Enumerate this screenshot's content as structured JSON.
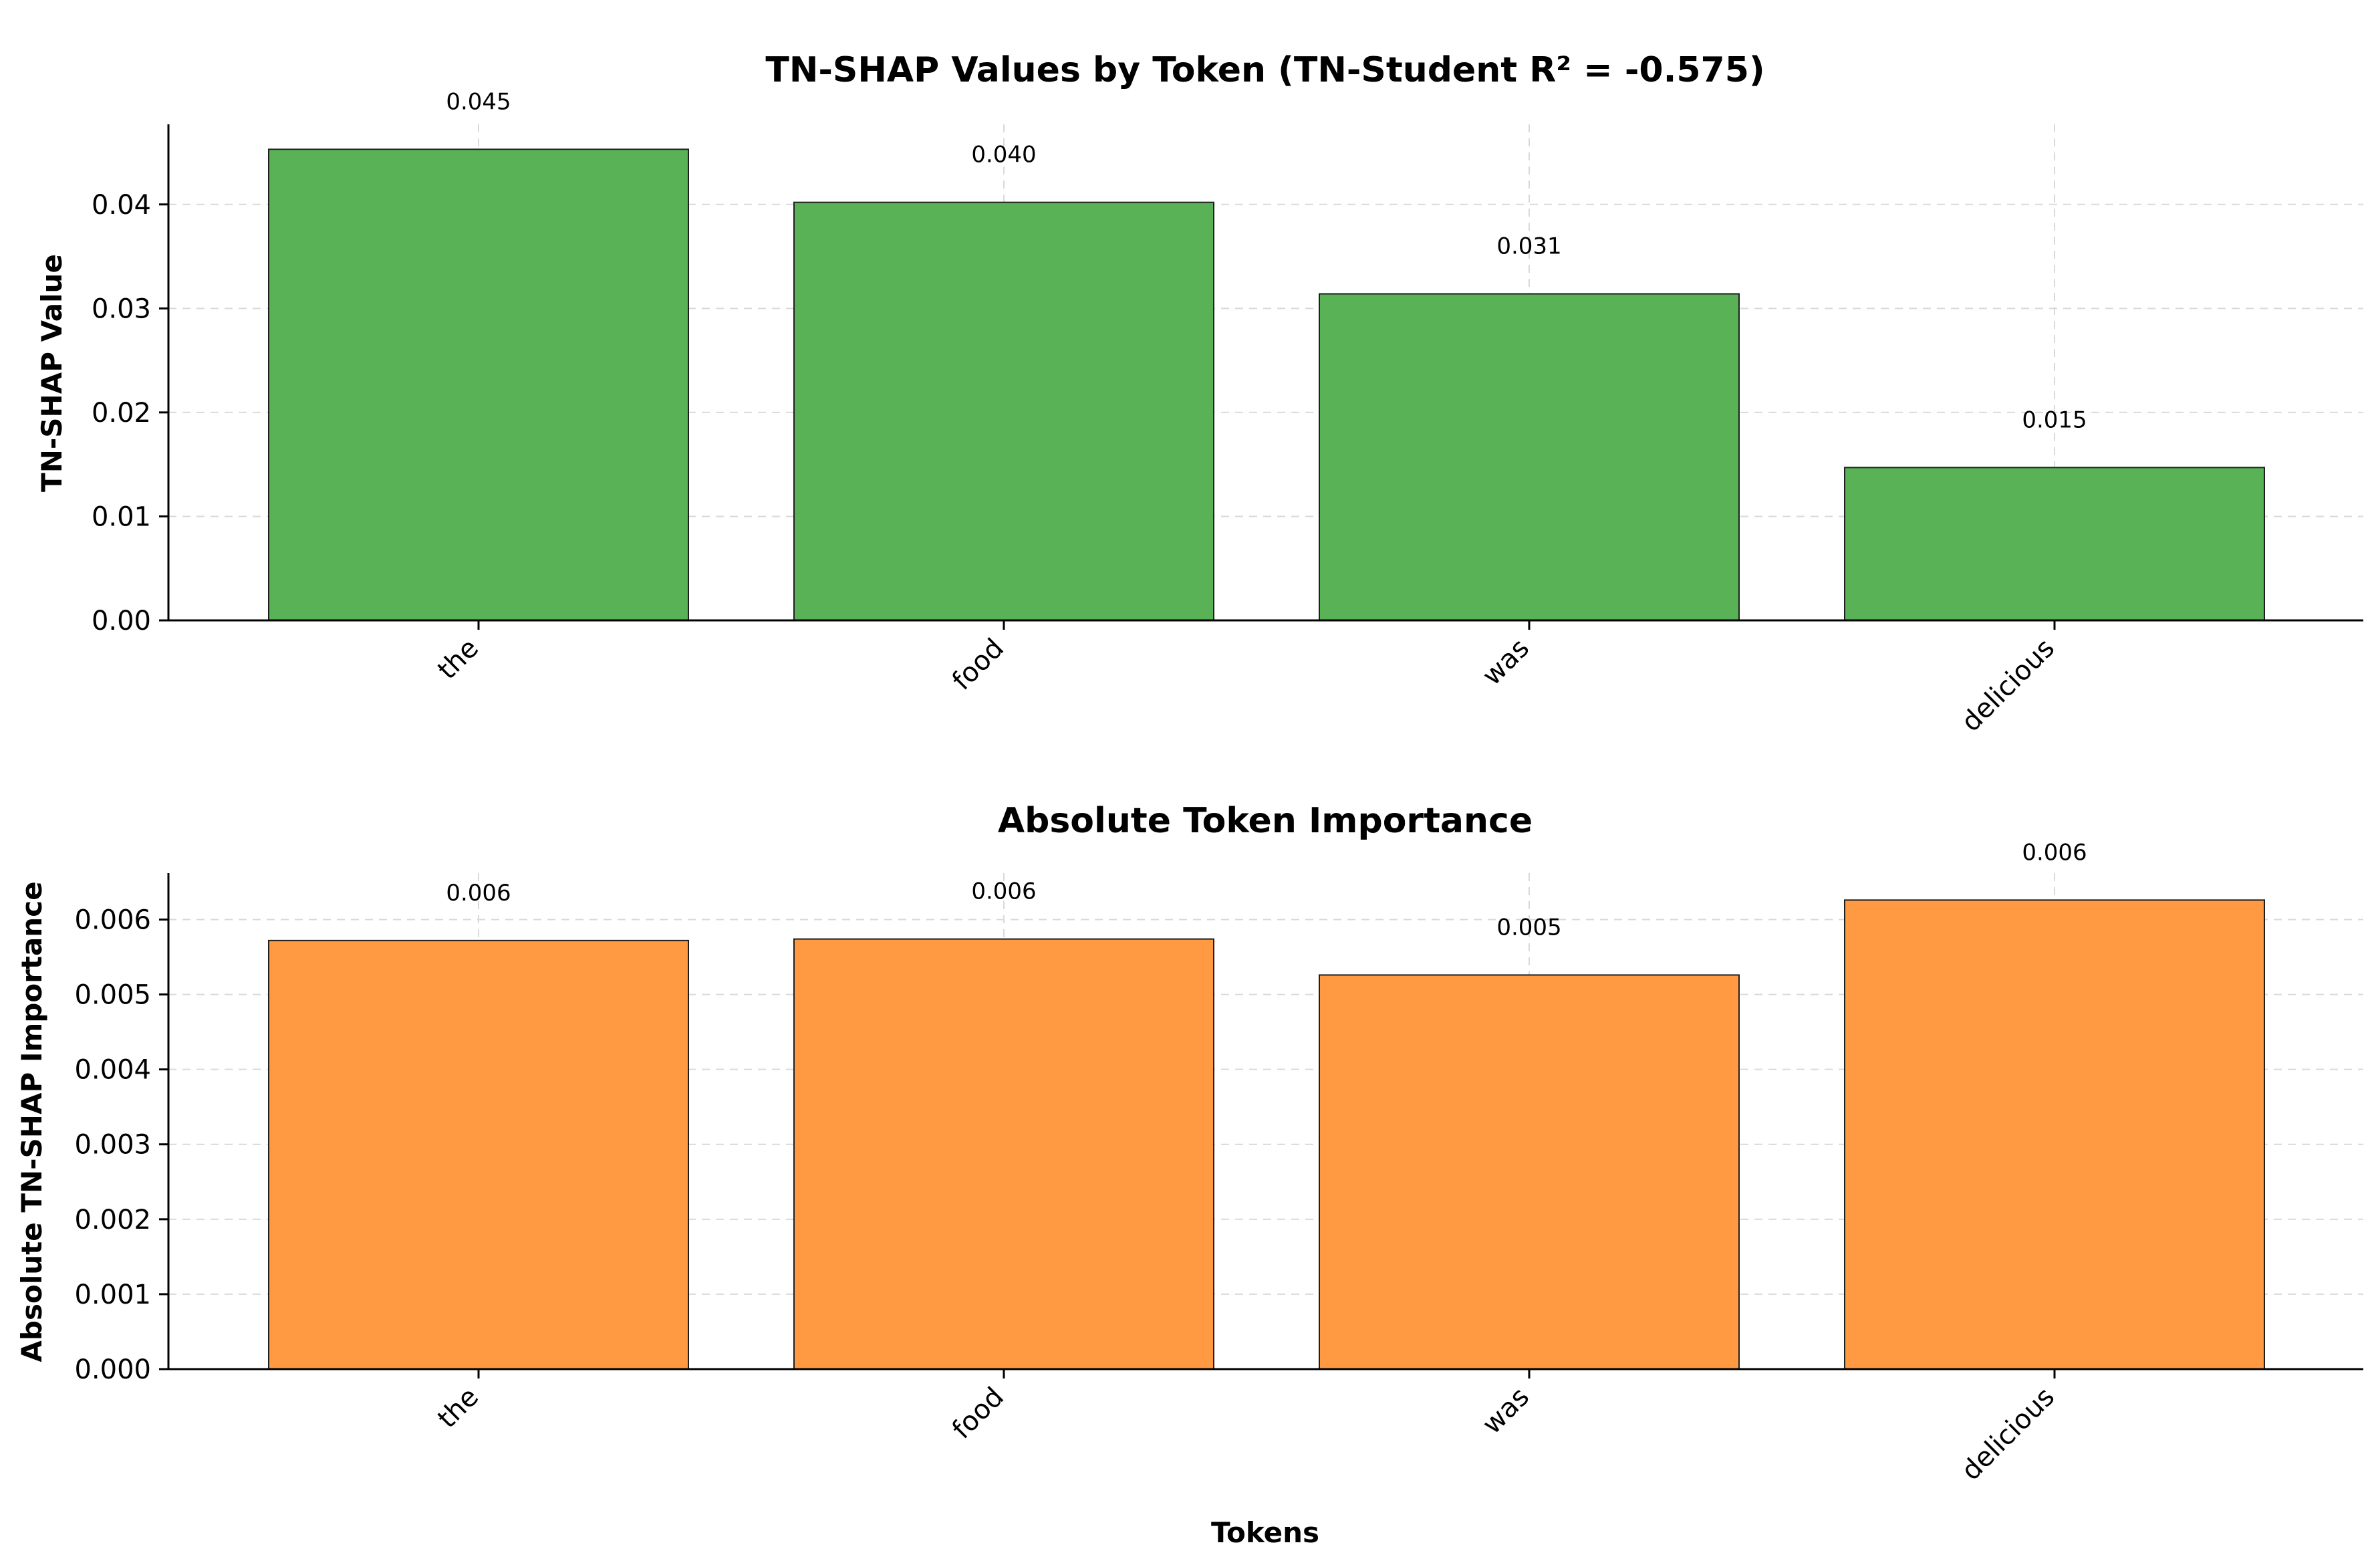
{
  "chart_data": [
    {
      "type": "bar",
      "title": "TN-SHAP Values by Token (TN-Student R² = -0.575)",
      "xlabel": "",
      "ylabel": "TN-SHAP Value",
      "categories": [
        "the",
        "food",
        "was",
        "delicious"
      ],
      "values": [
        0.0453,
        0.0402,
        0.0314,
        0.0147
      ],
      "data_labels": [
        "0.045",
        "0.040",
        "0.031",
        "0.015"
      ],
      "ylim": [
        0,
        0.0477
      ],
      "yticks": [
        0.0,
        0.01,
        0.02,
        0.03,
        0.04
      ],
      "ytick_labels": [
        "0.00",
        "0.01",
        "0.02",
        "0.03",
        "0.04"
      ],
      "bar_color": "#59b356",
      "grid": true
    },
    {
      "type": "bar",
      "title": "Absolute Token Importance",
      "xlabel": "Tokens",
      "ylabel": "Absolute TN-SHAP Importance",
      "categories": [
        "the",
        "food",
        "was",
        "delicious"
      ],
      "values": [
        0.00572,
        0.00574,
        0.00526,
        0.00626
      ],
      "data_labels": [
        "0.006",
        "0.006",
        "0.005",
        "0.006"
      ],
      "ylim": [
        0,
        0.00662
      ],
      "yticks": [
        0.0,
        0.001,
        0.002,
        0.003,
        0.004,
        0.005,
        0.006
      ],
      "ytick_labels": [
        "0.000",
        "0.001",
        "0.002",
        "0.003",
        "0.004",
        "0.005",
        "0.006"
      ],
      "bar_color": "#ff9a42",
      "grid": true
    }
  ]
}
